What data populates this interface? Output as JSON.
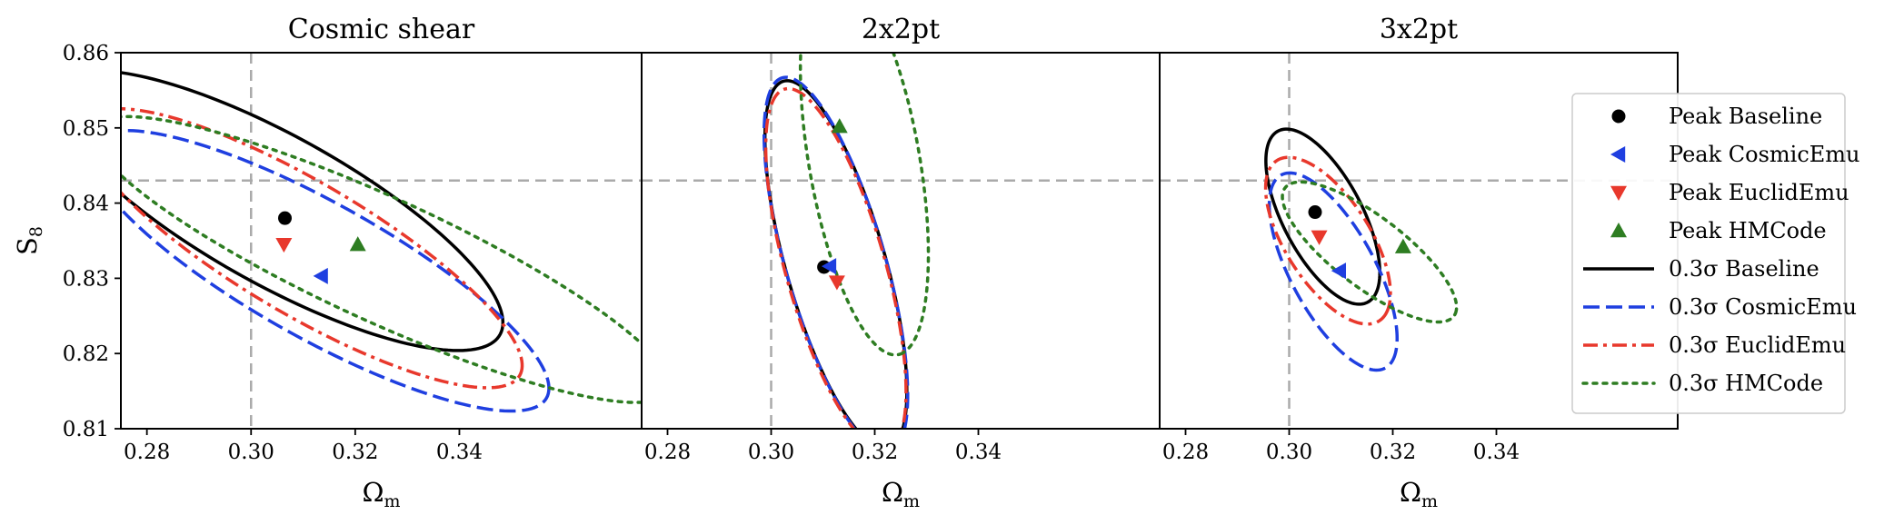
{
  "chart_data": [
    {
      "type": "line",
      "title": "Cosmic shear",
      "xlabel": "Ω",
      "xlabel_sub": "m",
      "ylabel": "S",
      "ylabel_sub": "8",
      "xlim": [
        0.275,
        0.375
      ],
      "ylim": [
        0.81,
        0.86
      ],
      "xticks": [
        "0.28",
        "0.30",
        "0.32",
        "0.34"
      ],
      "yticks": [
        "0.81",
        "0.82",
        "0.83",
        "0.84",
        "0.85",
        "0.86"
      ],
      "reference_lines": {
        "x": 0.3,
        "y": 0.843
      },
      "peaks": [
        {
          "name": "Peak Baseline",
          "x": 0.3065,
          "y": 0.838
        },
        {
          "name": "Peak CosmicEmu",
          "x": 0.3135,
          "y": 0.8303
        },
        {
          "name": "Peak EuclidEmu",
          "x": 0.3063,
          "y": 0.8345
        },
        {
          "name": "Peak HMCode",
          "x": 0.3205,
          "y": 0.8345
        }
      ],
      "contours": [
        {
          "name": "0.3σ Baseline",
          "cx": 0.305,
          "cy": 0.839,
          "a": 0.046,
          "b": 0.0105,
          "angle": -0.35
        },
        {
          "name": "0.3σ CosmicEmu",
          "cx": 0.313,
          "cy": 0.831,
          "a": 0.047,
          "b": 0.0096,
          "angle": -0.355
        },
        {
          "name": "0.3σ EuclidEmu",
          "cx": 0.31,
          "cy": 0.834,
          "a": 0.045,
          "b": 0.0094,
          "angle": -0.372
        },
        {
          "name": "0.3σ HMCode",
          "cx": 0.325,
          "cy": 0.8325,
          "a": 0.058,
          "b": 0.0086,
          "angle": -0.3
        }
      ]
    },
    {
      "type": "line",
      "title": "2x2pt",
      "xlabel": "Ω",
      "xlabel_sub": "m",
      "xlim": [
        0.275,
        0.375
      ],
      "ylim": [
        0.81,
        0.86
      ],
      "xticks": [
        "0.28",
        "0.30",
        "0.32",
        "0.34"
      ],
      "reference_lines": {
        "x": 0.3,
        "y": 0.843
      },
      "peaks": [
        {
          "name": "Peak Baseline",
          "x": 0.3102,
          "y": 0.8315
        },
        {
          "name": "Peak CosmicEmu",
          "x": 0.3113,
          "y": 0.8316
        },
        {
          "name": "Peak EuclidEmu",
          "x": 0.3127,
          "y": 0.8295
        },
        {
          "name": "Peak HMCode",
          "x": 0.3132,
          "y": 0.8502
        }
      ],
      "contours": [
        {
          "name": "0.3σ Baseline",
          "cx": 0.3125,
          "cy": 0.8318,
          "a": 0.0265,
          "b": 0.0092,
          "angle": -1.15
        },
        {
          "name": "0.3σ CosmicEmu",
          "cx": 0.3125,
          "cy": 0.8318,
          "a": 0.027,
          "b": 0.0092,
          "angle": -1.15
        },
        {
          "name": "0.3σ EuclidEmu",
          "cx": 0.3125,
          "cy": 0.8312,
          "a": 0.026,
          "b": 0.0092,
          "angle": -1.15
        },
        {
          "name": "0.3σ HMCode",
          "cx": 0.318,
          "cy": 0.8455,
          "a": 0.0265,
          "b": 0.0105,
          "angle": -1.3
        }
      ]
    },
    {
      "type": "line",
      "title": "3x2pt",
      "xlabel": "Ω",
      "xlabel_sub": "m",
      "xlim": [
        0.275,
        0.375
      ],
      "ylim": [
        0.81,
        0.86
      ],
      "xticks": [
        "0.28",
        "0.30",
        "0.32",
        "0.34"
      ],
      "reference_lines": {
        "x": 0.3,
        "y": 0.843
      },
      "peaks": [
        {
          "name": "Peak Baseline",
          "x": 0.305,
          "y": 0.8388
        },
        {
          "name": "Peak CosmicEmu",
          "x": 0.3097,
          "y": 0.831
        },
        {
          "name": "Peak EuclidEmu",
          "x": 0.3058,
          "y": 0.8355
        },
        {
          "name": "Peak HMCode",
          "x": 0.322,
          "y": 0.8342
        }
      ],
      "contours": [
        {
          "name": "0.3σ Baseline",
          "cx": 0.3065,
          "cy": 0.8382,
          "a": 0.0145,
          "b": 0.0068,
          "angle": -0.83
        },
        {
          "name": "0.3σ CosmicEmu",
          "cx": 0.3085,
          "cy": 0.8309,
          "a": 0.0165,
          "b": 0.0072,
          "angle": -0.83
        },
        {
          "name": "0.3σ EuclidEmu",
          "cx": 0.3075,
          "cy": 0.835,
          "a": 0.0148,
          "b": 0.007,
          "angle": -0.72
        },
        {
          "name": "0.3σ HMCode",
          "cx": 0.3155,
          "cy": 0.8335,
          "a": 0.0185,
          "b": 0.0052,
          "angle": -0.45
        }
      ]
    }
  ],
  "legend": {
    "position": "right",
    "entries": [
      {
        "label": "Peak Baseline",
        "kind": "marker",
        "marker": "circle",
        "color": "#000000"
      },
      {
        "label": "Peak CosmicEmu",
        "kind": "marker",
        "marker": "triangle-left",
        "color": "#1f3fe0"
      },
      {
        "label": "Peak EuclidEmu",
        "kind": "marker",
        "marker": "triangle-down",
        "color": "#e8382c"
      },
      {
        "label": "Peak HMCode",
        "kind": "marker",
        "marker": "triangle-up",
        "color": "#2e7d22"
      },
      {
        "label": "0.3σ Baseline",
        "kind": "line",
        "dash": "solid",
        "color": "#000000"
      },
      {
        "label": "0.3σ CosmicEmu",
        "kind": "line",
        "dash": "dashed",
        "color": "#1f3fe0"
      },
      {
        "label": "0.3σ EuclidEmu",
        "kind": "line",
        "dash": "dashdot",
        "color": "#e8382c"
      },
      {
        "label": "0.3σ HMCode",
        "kind": "line",
        "dash": "dotted",
        "color": "#2e7d22"
      }
    ]
  },
  "styles": {
    "Baseline": {
      "color": "#000000",
      "dash": "solid"
    },
    "CosmicEmu": {
      "color": "#1f3fe0",
      "dash": "dashed"
    },
    "EuclidEmu": {
      "color": "#e8382c",
      "dash": "dashdot"
    },
    "HMCode": {
      "color": "#2e7d22",
      "dash": "dotted"
    },
    "reference_line_color": "#aaaaaa"
  }
}
